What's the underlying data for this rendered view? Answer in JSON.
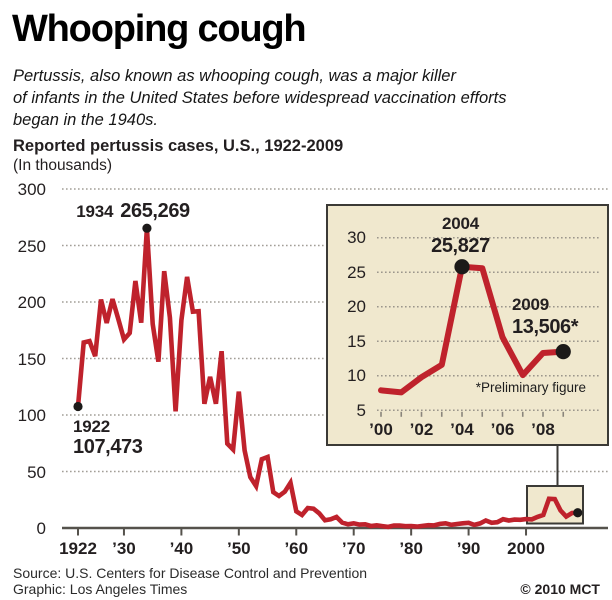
{
  "header": {
    "title": "Whooping cough",
    "subtitle_lines": [
      "Pertussis, also known as whooping cough, was a major killer",
      "of infants in the United States before widespread vaccination efforts",
      "began in the 1940s."
    ],
    "chart_heading": "Reported pertussis cases, U.S., 1922-2009",
    "chart_subheading": "(In thousands)"
  },
  "annotations": {
    "main_peak": {
      "year": "1934",
      "value": "265,269"
    },
    "main_start": {
      "year": "1922",
      "value": "107,473"
    },
    "inset_peak": {
      "year": "2004",
      "value": "25,827"
    },
    "inset_last": {
      "year": "2009",
      "value": "13,506*"
    },
    "footnote": "*Preliminary figure"
  },
  "footer": {
    "source": "Source: U.S. Centers for Disease Control and Prevention",
    "credit": "Graphic: Los Angeles Times",
    "copyright": "© 2010 MCT"
  },
  "colors": {
    "line_red": "#bf222c",
    "beige_fill": "#f0e8ce",
    "box_border": "#3b3a36",
    "grid_gray": "#a29e97",
    "axis_dark": "#55524c",
    "dot_black": "#1c1a19"
  },
  "chart_data": [
    {
      "id": "main",
      "type": "line",
      "title": "Reported pertussis cases, U.S., 1922-2009",
      "units": "thousands of reported cases",
      "ylim": [
        0,
        300
      ],
      "yticks": [
        0,
        50,
        100,
        150,
        200,
        250,
        300
      ],
      "grid": "dotted horizontal",
      "legend": "none",
      "xticks": [
        {
          "label": "1922",
          "year": 1922
        },
        {
          "label": "’30",
          "year": 1930
        },
        {
          "label": "’40",
          "year": 1940
        },
        {
          "label": "’50",
          "year": 1950
        },
        {
          "label": "’60",
          "year": 1960
        },
        {
          "label": "’70",
          "year": 1970
        },
        {
          "label": "’80",
          "year": 1980
        },
        {
          "label": "’90",
          "year": 1990
        },
        {
          "label": "2000",
          "year": 2000
        }
      ],
      "x": [
        1922,
        1923,
        1924,
        1925,
        1926,
        1927,
        1928,
        1929,
        1930,
        1931,
        1932,
        1933,
        1934,
        1935,
        1936,
        1937,
        1938,
        1939,
        1940,
        1941,
        1942,
        1943,
        1944,
        1945,
        1946,
        1947,
        1948,
        1949,
        1950,
        1951,
        1952,
        1953,
        1954,
        1955,
        1956,
        1957,
        1958,
        1959,
        1960,
        1961,
        1962,
        1963,
        1964,
        1965,
        1966,
        1967,
        1968,
        1969,
        1970,
        1971,
        1972,
        1973,
        1974,
        1975,
        1976,
        1977,
        1978,
        1979,
        1980,
        1981,
        1982,
        1983,
        1984,
        1985,
        1986,
        1987,
        1988,
        1989,
        1990,
        1991,
        1992,
        1993,
        1994,
        1995,
        1996,
        1997,
        1998,
        1999,
        2000,
        2001,
        2002,
        2003,
        2004,
        2005,
        2006,
        2007,
        2008,
        2009
      ],
      "values": [
        107.5,
        164.2,
        165.4,
        152.0,
        202.2,
        181.4,
        202.6,
        185.2,
        166.9,
        172.6,
        218.6,
        181.7,
        265.3,
        180.5,
        147.2,
        227.3,
        186.2,
        103.2,
        183.9,
        222.2,
        191.4,
        191.9,
        109.9,
        133.8,
        109.9,
        156.5,
        74.7,
        69.5,
        120.7,
        68.7,
        45.0,
        37.1,
        60.9,
        62.8,
        31.7,
        28.3,
        32.1,
        40.0,
        14.8,
        11.5,
        17.7,
        17.1,
        13.0,
        6.8,
        7.7,
        9.7,
        4.8,
        3.3,
        4.2,
        3.0,
        3.3,
        1.8,
        2.4,
        1.7,
        1.0,
        2.2,
        2.1,
        1.6,
        1.7,
        1.2,
        1.9,
        2.5,
        2.3,
        3.6,
        4.2,
        2.8,
        3.5,
        4.2,
        4.6,
        2.7,
        4.1,
        6.6,
        4.6,
        5.1,
        7.8,
        6.6,
        7.4,
        7.3,
        7.9,
        7.6,
        9.8,
        11.6,
        25.8,
        25.6,
        15.6,
        10.1,
        13.3,
        13.5
      ],
      "markers": [
        {
          "year": 1922,
          "value": 107.5
        },
        {
          "year": 1934,
          "value": 265.3
        },
        {
          "year": 2009,
          "value": 13.5
        }
      ]
    },
    {
      "id": "inset",
      "type": "line",
      "units": "thousands of reported cases",
      "ylim": [
        5,
        32
      ],
      "yticks": [
        5,
        10,
        15,
        20,
        25,
        30
      ],
      "grid": "dotted horizontal",
      "legend": "none",
      "xticks": [
        {
          "label": "’00",
          "year": 2000
        },
        {
          "label": "’02",
          "year": 2002
        },
        {
          "label": "’04",
          "year": 2004
        },
        {
          "label": "’06",
          "year": 2006
        },
        {
          "label": "’08",
          "year": 2008
        }
      ],
      "x": [
        2000,
        2001,
        2002,
        2003,
        2004,
        2005,
        2006,
        2007,
        2008,
        2009
      ],
      "values": [
        7.9,
        7.6,
        9.8,
        11.6,
        25.8,
        25.6,
        15.6,
        10.1,
        13.3,
        13.5
      ],
      "markers": [
        {
          "year": 2004,
          "value": 25.8
        },
        {
          "year": 2009,
          "value": 13.5
        }
      ]
    }
  ]
}
